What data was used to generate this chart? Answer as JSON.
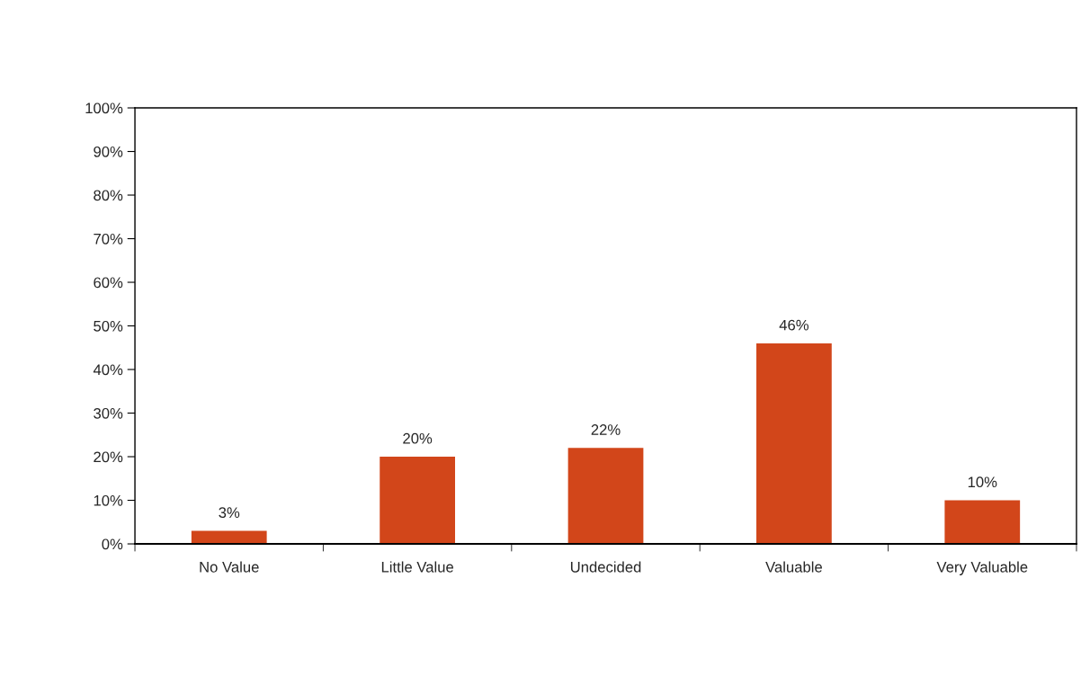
{
  "chart_data": {
    "type": "bar",
    "categories": [
      "No Value",
      "Little Value",
      "Undecided",
      "Valuable",
      "Very Valuable"
    ],
    "values": [
      3,
      20,
      22,
      46,
      10
    ],
    "value_labels": [
      "3%",
      "20%",
      "22%",
      "46%",
      "10%"
    ],
    "color": "#d2461a",
    "ylim": [
      0,
      100
    ],
    "yticks": [
      {
        "value": 0,
        "label": "0%"
      },
      {
        "value": 10,
        "label": "10%"
      },
      {
        "value": 20,
        "label": "20%"
      },
      {
        "value": 30,
        "label": "30%"
      },
      {
        "value": 40,
        "label": "40%"
      },
      {
        "value": 50,
        "label": "50%"
      },
      {
        "value": 60,
        "label": "60%"
      },
      {
        "value": 70,
        "label": "70%"
      },
      {
        "value": 80,
        "label": "80%"
      },
      {
        "value": 90,
        "label": "90%"
      },
      {
        "value": 100,
        "label": "100%"
      }
    ],
    "grid": false,
    "legend": false
  }
}
